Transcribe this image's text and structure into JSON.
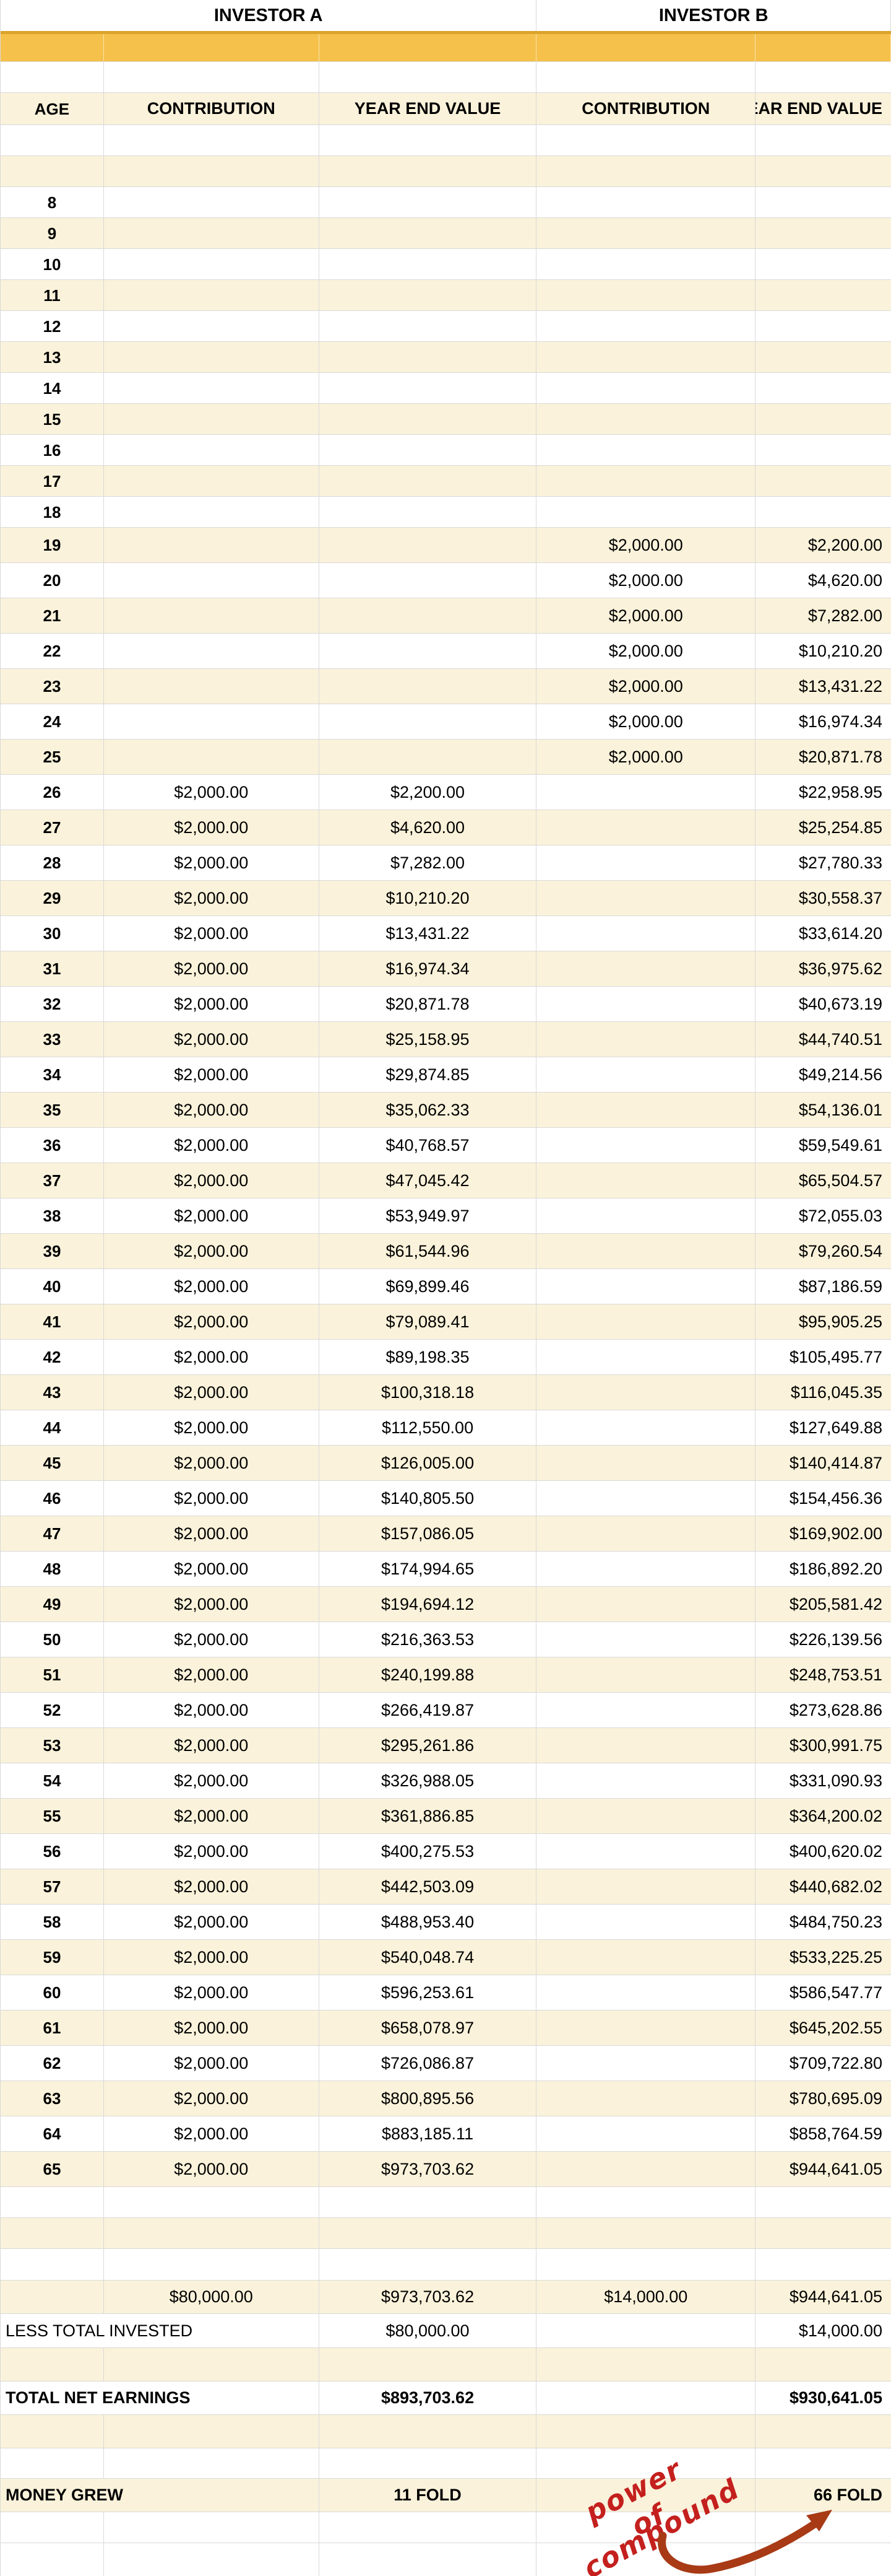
{
  "header": {
    "investor_a": "INVESTOR A",
    "investor_b": "INVESTOR B",
    "columns": [
      "AGE",
      "CONTRIBUTION",
      "YEAR END VALUE",
      "CONTRIBUTION",
      "YEAR END VALUE"
    ]
  },
  "table": {
    "rows": [
      [
        8,
        "",
        "",
        "",
        ""
      ],
      [
        9,
        "",
        "",
        "",
        ""
      ],
      [
        10,
        "",
        "",
        "",
        ""
      ],
      [
        11,
        "",
        "",
        "",
        ""
      ],
      [
        12,
        "",
        "",
        "",
        ""
      ],
      [
        13,
        "",
        "",
        "",
        ""
      ],
      [
        14,
        "",
        "",
        "",
        ""
      ],
      [
        15,
        "",
        "",
        "",
        ""
      ],
      [
        16,
        "",
        "",
        "",
        ""
      ],
      [
        17,
        "",
        "",
        "",
        ""
      ],
      [
        18,
        "",
        "",
        "",
        ""
      ],
      [
        19,
        "",
        "",
        "$2,000.00",
        "$2,200.00"
      ],
      [
        20,
        "",
        "",
        "$2,000.00",
        "$4,620.00"
      ],
      [
        21,
        "",
        "",
        "$2,000.00",
        "$7,282.00"
      ],
      [
        22,
        "",
        "",
        "$2,000.00",
        "$10,210.20"
      ],
      [
        23,
        "",
        "",
        "$2,000.00",
        "$13,431.22"
      ],
      [
        24,
        "",
        "",
        "$2,000.00",
        "$16,974.34"
      ],
      [
        25,
        "",
        "",
        "$2,000.00",
        "$20,871.78"
      ],
      [
        26,
        "$2,000.00",
        "$2,200.00",
        "",
        "$22,958.95"
      ],
      [
        27,
        "$2,000.00",
        "$4,620.00",
        "",
        "$25,254.85"
      ],
      [
        28,
        "$2,000.00",
        "$7,282.00",
        "",
        "$27,780.33"
      ],
      [
        29,
        "$2,000.00",
        "$10,210.20",
        "",
        "$30,558.37"
      ],
      [
        30,
        "$2,000.00",
        "$13,431.22",
        "",
        "$33,614.20"
      ],
      [
        31,
        "$2,000.00",
        "$16,974.34",
        "",
        "$36,975.62"
      ],
      [
        32,
        "$2,000.00",
        "$20,871.78",
        "",
        "$40,673.19"
      ],
      [
        33,
        "$2,000.00",
        "$25,158.95",
        "",
        "$44,740.51"
      ],
      [
        34,
        "$2,000.00",
        "$29,874.85",
        "",
        "$49,214.56"
      ],
      [
        35,
        "$2,000.00",
        "$35,062.33",
        "",
        "$54,136.01"
      ],
      [
        36,
        "$2,000.00",
        "$40,768.57",
        "",
        "$59,549.61"
      ],
      [
        37,
        "$2,000.00",
        "$47,045.42",
        "",
        "$65,504.57"
      ],
      [
        38,
        "$2,000.00",
        "$53,949.97",
        "",
        "$72,055.03"
      ],
      [
        39,
        "$2,000.00",
        "$61,544.96",
        "",
        "$79,260.54"
      ],
      [
        40,
        "$2,000.00",
        "$69,899.46",
        "",
        "$87,186.59"
      ],
      [
        41,
        "$2,000.00",
        "$79,089.41",
        "",
        "$95,905.25"
      ],
      [
        42,
        "$2,000.00",
        "$89,198.35",
        "",
        "$105,495.77"
      ],
      [
        43,
        "$2,000.00",
        "$100,318.18",
        "",
        "$116,045.35"
      ],
      [
        44,
        "$2,000.00",
        "$112,550.00",
        "",
        "$127,649.88"
      ],
      [
        45,
        "$2,000.00",
        "$126,005.00",
        "",
        "$140,414.87"
      ],
      [
        46,
        "$2,000.00",
        "$140,805.50",
        "",
        "$154,456.36"
      ],
      [
        47,
        "$2,000.00",
        "$157,086.05",
        "",
        "$169,902.00"
      ],
      [
        48,
        "$2,000.00",
        "$174,994.65",
        "",
        "$186,892.20"
      ],
      [
        49,
        "$2,000.00",
        "$194,694.12",
        "",
        "$205,581.42"
      ],
      [
        50,
        "$2,000.00",
        "$216,363.53",
        "",
        "$226,139.56"
      ],
      [
        51,
        "$2,000.00",
        "$240,199.88",
        "",
        "$248,753.51"
      ],
      [
        52,
        "$2,000.00",
        "$266,419.87",
        "",
        "$273,628.86"
      ],
      [
        53,
        "$2,000.00",
        "$295,261.86",
        "",
        "$300,991.75"
      ],
      [
        54,
        "$2,000.00",
        "$326,988.05",
        "",
        "$331,090.93"
      ],
      [
        55,
        "$2,000.00",
        "$361,886.85",
        "",
        "$364,200.02"
      ],
      [
        56,
        "$2,000.00",
        "$400,275.53",
        "",
        "$400,620.02"
      ],
      [
        57,
        "$2,000.00",
        "$442,503.09",
        "",
        "$440,682.02"
      ],
      [
        58,
        "$2,000.00",
        "$488,953.40",
        "",
        "$484,750.23"
      ],
      [
        59,
        "$2,000.00",
        "$540,048.74",
        "",
        "$533,225.25"
      ],
      [
        60,
        "$2,000.00",
        "$596,253.61",
        "",
        "$586,547.77"
      ],
      [
        61,
        "$2,000.00",
        "$658,078.97",
        "",
        "$645,202.55"
      ],
      [
        62,
        "$2,000.00",
        "$726,086.87",
        "",
        "$709,722.80"
      ],
      [
        63,
        "$2,000.00",
        "$800,895.56",
        "",
        "$780,695.09"
      ],
      [
        64,
        "$2,000.00",
        "$883,185.11",
        "",
        "$858,764.59"
      ],
      [
        65,
        "$2,000.00",
        "$973,703.62",
        "",
        "$944,641.05"
      ]
    ]
  },
  "summary": {
    "totals": {
      "a_contribution": "$80,000.00",
      "a_year_end_value": "$973,703.62",
      "b_contribution": "$14,000.00",
      "b_year_end_value": "$944,641.05"
    },
    "less_total_invested": {
      "label": "LESS TOTAL INVESTED",
      "a_value": "$80,000.00",
      "b_value": "$14,000.00"
    },
    "total_net_earnings": {
      "label": "TOTAL NET EARNINGS",
      "a_value": "$893,703.62",
      "b_value": "$930,641.05"
    },
    "money_grew": {
      "label": "MONEY GREW",
      "a_value": "11 FOLD",
      "b_value": "66 FOLD"
    }
  },
  "annotation": {
    "line1": "power of",
    "line2": "compound"
  },
  "colors": {
    "band": "#faf2da",
    "accent": "#f5c14b",
    "accent_edge": "#dca42c",
    "grid": "#d9d9d9",
    "hand": "#c4201e",
    "arrow": "#a83a16"
  }
}
